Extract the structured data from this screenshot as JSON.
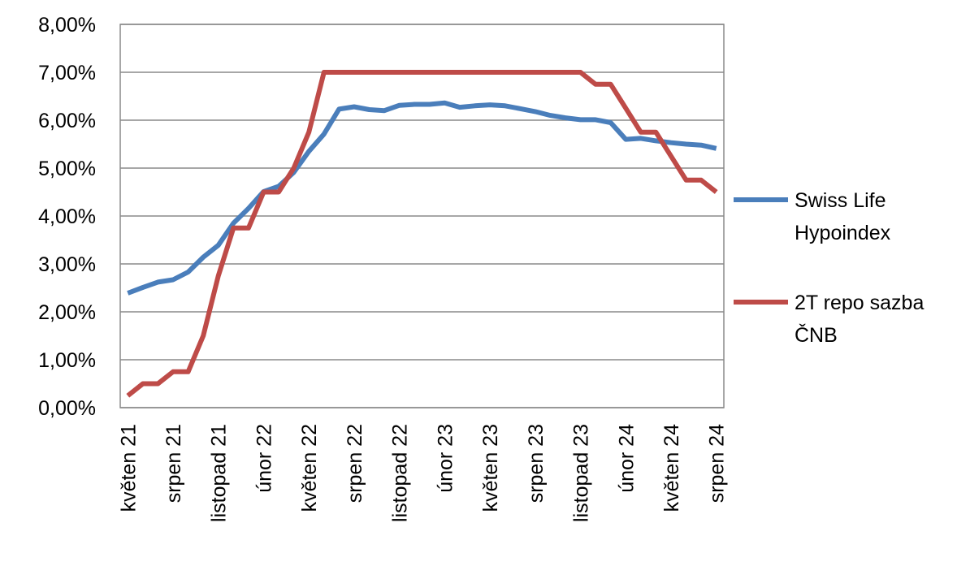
{
  "chart_data": {
    "type": "line",
    "title": "",
    "xlabel": "",
    "ylabel": "",
    "ylim": [
      0,
      0.08
    ],
    "grid": true,
    "legend_position": "right",
    "y_ticks": [
      "0,00%",
      "1,00%",
      "2,00%",
      "3,00%",
      "4,00%",
      "5,00%",
      "6,00%",
      "7,00%",
      "8,00%"
    ],
    "x": [
      "2021-05",
      "2021-06",
      "2021-07",
      "2021-08",
      "2021-09",
      "2021-10",
      "2021-11",
      "2021-12",
      "2022-01",
      "2022-02",
      "2022-03",
      "2022-04",
      "2022-05",
      "2022-06",
      "2022-07",
      "2022-08",
      "2022-09",
      "2022-10",
      "2022-11",
      "2022-12",
      "2023-01",
      "2023-02",
      "2023-03",
      "2023-04",
      "2023-05",
      "2023-06",
      "2023-07",
      "2023-08",
      "2023-09",
      "2023-10",
      "2023-11",
      "2023-12",
      "2024-01",
      "2024-02",
      "2024-03",
      "2024-04",
      "2024-05",
      "2024-06",
      "2024-07",
      "2024-08"
    ],
    "x_ticks": [
      {
        "index": 0,
        "label": "květen 21"
      },
      {
        "index": 3,
        "label": "srpen 21"
      },
      {
        "index": 6,
        "label": "listopad 21"
      },
      {
        "index": 9,
        "label": "únor 22"
      },
      {
        "index": 12,
        "label": "květen 22"
      },
      {
        "index": 15,
        "label": "srpen 22"
      },
      {
        "index": 18,
        "label": "listopad 22"
      },
      {
        "index": 21,
        "label": "únor 23"
      },
      {
        "index": 24,
        "label": "květen 23"
      },
      {
        "index": 27,
        "label": "srpen 23"
      },
      {
        "index": 30,
        "label": "listopad 23"
      },
      {
        "index": 33,
        "label": "únor 24"
      },
      {
        "index": 36,
        "label": "květen 24"
      },
      {
        "index": 39,
        "label": "srpen 24"
      }
    ],
    "series": [
      {
        "name": "Swiss Life Hypoindex",
        "legend_lines": [
          "Swiss Life",
          "Hypoindex"
        ],
        "color": "#4a7ebb",
        "values": [
          0.0239,
          0.0251,
          0.0262,
          0.0267,
          0.0283,
          0.0314,
          0.0339,
          0.0385,
          0.0416,
          0.0451,
          0.0462,
          0.0491,
          0.0535,
          0.0571,
          0.0623,
          0.0628,
          0.0622,
          0.062,
          0.0631,
          0.0633,
          0.0633,
          0.0636,
          0.0627,
          0.063,
          0.0632,
          0.063,
          0.0624,
          0.0618,
          0.061,
          0.0605,
          0.0601,
          0.0601,
          0.0595,
          0.056,
          0.0562,
          0.0557,
          0.0553,
          0.055,
          0.0548,
          0.0541
        ]
      },
      {
        "name": "2T repo sazba ČNB",
        "legend_lines": [
          "2T repo sazba",
          "ČNB"
        ],
        "color": "#be4b48",
        "values": [
          0.0025,
          0.005,
          0.005,
          0.0075,
          0.0075,
          0.015,
          0.0275,
          0.0375,
          0.0375,
          0.045,
          0.045,
          0.05,
          0.0575,
          0.07,
          0.07,
          0.07,
          0.07,
          0.07,
          0.07,
          0.07,
          0.07,
          0.07,
          0.07,
          0.07,
          0.07,
          0.07,
          0.07,
          0.07,
          0.07,
          0.07,
          0.07,
          0.0675,
          0.0675,
          0.0625,
          0.0575,
          0.0575,
          0.0525,
          0.0475,
          0.0475,
          0.045
        ]
      }
    ]
  }
}
